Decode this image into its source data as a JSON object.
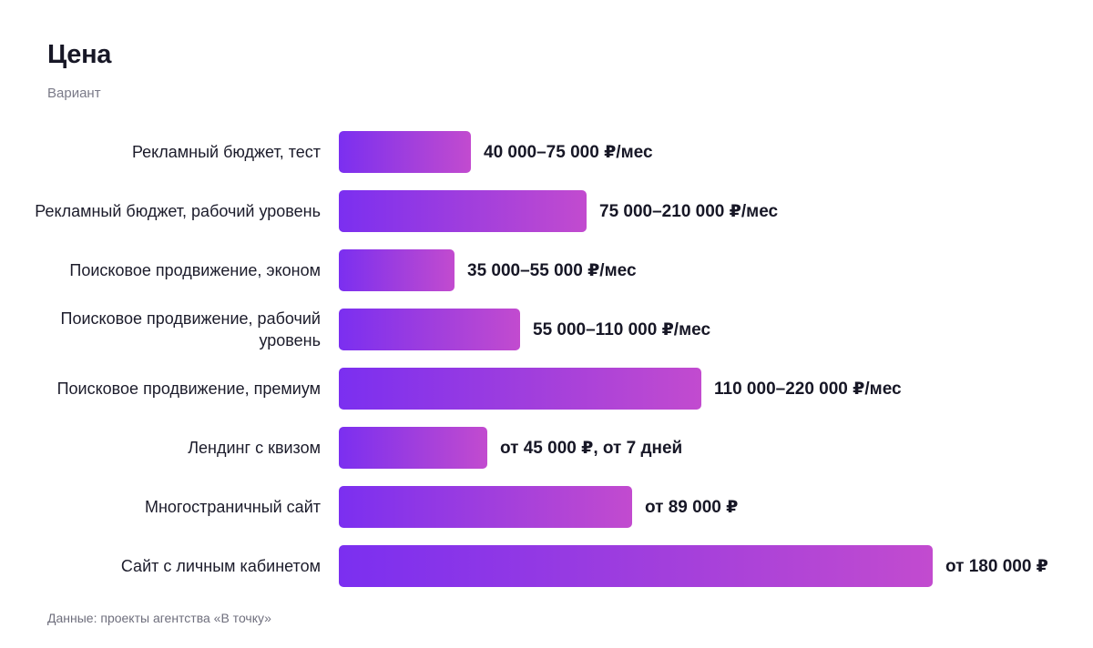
{
  "header": {
    "title": "Цена",
    "subtitle": "Вариант"
  },
  "footer": {
    "source": "Данные: проекты агентства «В точку»"
  },
  "chart_data": {
    "type": "bar",
    "orientation": "horizontal",
    "title": "Цена",
    "subtitle": "Вариант",
    "grid": false,
    "legend": "none",
    "bar_color_start": "#7b2ff0",
    "bar_color_end": "#c24bcf",
    "xlim": [
      0,
      180000
    ],
    "categories": [
      "Рекламный бюджет, тест",
      "Рекламный бюджет, рабочий уровень",
      "Поисковое продвижение, эконом",
      "Поисковое продвижение, рабочий уровень",
      "Поисковое продвижение, премиум",
      "Лендинг с квизом",
      "Многостраничный сайт",
      "Сайт с личным кабинетом"
    ],
    "values": [
      40000,
      75000,
      35000,
      55000,
      110000,
      45000,
      89000,
      180000
    ],
    "value_labels": [
      "40 000–75 000 ₽/мес",
      "75 000–210 000 ₽/мес",
      "35 000–55 000 ₽/мес",
      "55 000–110 000 ₽/мес",
      "110 000–220 000 ₽/мес",
      "от 45 000 ₽, от 7 дней",
      "от 89 000 ₽",
      "от 180 000 ₽"
    ]
  }
}
